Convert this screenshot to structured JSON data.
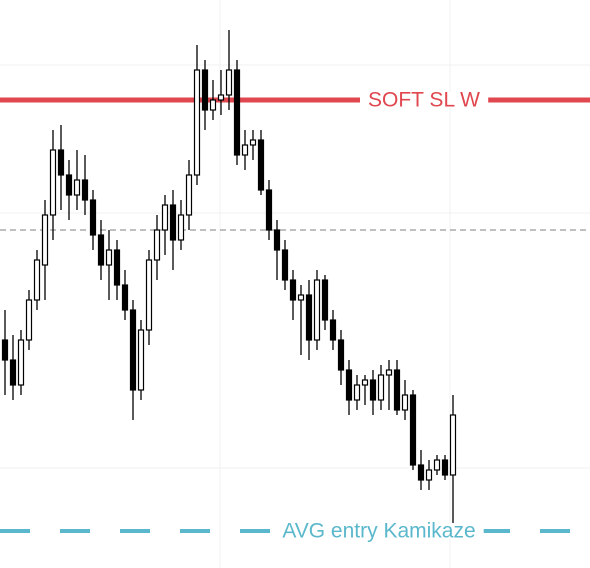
{
  "chart_data": {
    "type": "candlestick",
    "ylim": [
      0,
      568
    ],
    "open": [
      228,
      208,
      183,
      228,
      268,
      303,
      353,
      418,
      393,
      373,
      388,
      368,
      333,
      303,
      318,
      283,
      258,
      178,
      238,
      308,
      338,
      363,
      328,
      353,
      393,
      498,
      458,
      468,
      473,
      498,
      413,
      423,
      428,
      378,
      338,
      318,
      288,
      268,
      273,
      228,
      288,
      248,
      228,
      198,
      168,
      183,
      188,
      168,
      193,
      198,
      158,
      173,
      103,
      88,
      98,
      108,
      93
    ],
    "high": [
      258,
      233,
      238,
      278,
      318,
      368,
      438,
      443,
      408,
      418,
      413,
      378,
      348,
      338,
      328,
      298,
      268,
      248,
      318,
      353,
      373,
      378,
      368,
      408,
      523,
      508,
      488,
      498,
      538,
      508,
      438,
      438,
      438,
      388,
      348,
      328,
      298,
      283,
      288,
      298,
      293,
      258,
      238,
      208,
      193,
      193,
      198,
      203,
      208,
      208,
      188,
      178,
      118,
      108,
      113,
      113,
      173
    ],
    "low": [
      173,
      168,
      173,
      218,
      258,
      268,
      328,
      358,
      348,
      358,
      353,
      318,
      288,
      268,
      268,
      248,
      148,
      168,
      223,
      288,
      313,
      298,
      318,
      338,
      383,
      438,
      448,
      453,
      458,
      403,
      398,
      408,
      373,
      328,
      288,
      278,
      248,
      213,
      208,
      218,
      238,
      218,
      183,
      153,
      158,
      163,
      153,
      158,
      158,
      153,
      148,
      98,
      78,
      78,
      93,
      88,
      43
    ],
    "close": [
      208,
      183,
      228,
      268,
      308,
      353,
      418,
      393,
      373,
      388,
      368,
      333,
      303,
      318,
      283,
      258,
      178,
      238,
      308,
      338,
      363,
      328,
      353,
      393,
      498,
      458,
      468,
      473,
      498,
      413,
      423,
      428,
      378,
      338,
      318,
      288,
      268,
      273,
      228,
      288,
      248,
      228,
      198,
      168,
      183,
      188,
      168,
      193,
      198,
      158,
      173,
      103,
      88,
      98,
      108,
      93,
      153
    ],
    "levels": [
      {
        "name": "SOFT SL W",
        "value": 468,
        "color": "#e0474f",
        "style": "solid"
      },
      {
        "value": 338,
        "color": "#9a9a9a",
        "style": "dashed"
      },
      {
        "name": "AVG entry Kamikaze",
        "value": 37,
        "color": "#5bb8cc",
        "style": "dashed"
      }
    ]
  }
}
